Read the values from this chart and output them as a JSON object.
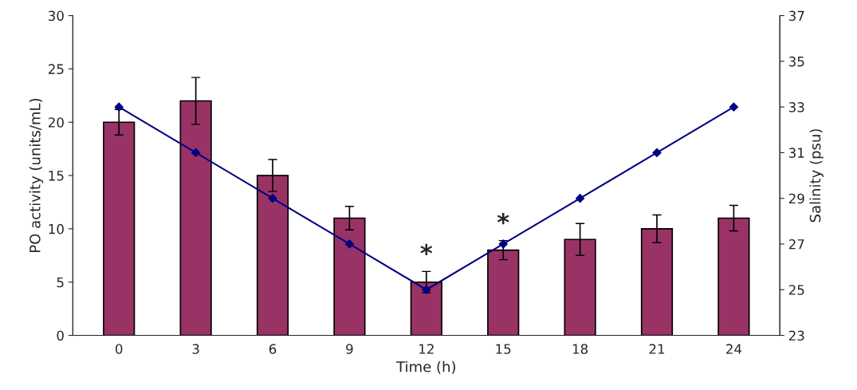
{
  "chart_data": {
    "type": "bar",
    "xlabel": "Time (h)",
    "ylabel": "PO activity (units/mL)",
    "y2label": "Salinity (psu)",
    "categories": [
      "0",
      "3",
      "6",
      "9",
      "12",
      "15",
      "18",
      "21",
      "24"
    ],
    "series": [
      {
        "color": "#993366",
        "values": [
          20,
          22,
          15,
          11,
          5,
          8,
          9,
          10,
          11
        ],
        "errors": [
          1.2,
          2.2,
          1.5,
          1.1,
          1,
          0.9,
          1.5,
          1.3,
          1.2
        ]
      },
      {
        "type": "line",
        "axis": "y2",
        "color": "#000080",
        "marker": "diamond",
        "values": [
          33,
          31,
          29,
          27,
          25,
          27,
          29,
          31,
          33
        ]
      }
    ],
    "ylim": [
      0,
      30
    ],
    "yticks": [
      0,
      5,
      10,
      15,
      20,
      25,
      30
    ],
    "y2lim": [
      23,
      37
    ],
    "y2ticks": [
      23,
      25,
      27,
      29,
      31,
      33,
      35,
      37
    ],
    "annotations": [
      {
        "text": "*",
        "x": "12",
        "y": 5
      },
      {
        "text": "*",
        "x": "15",
        "y": 8
      }
    ],
    "grid": false,
    "legend": false
  }
}
